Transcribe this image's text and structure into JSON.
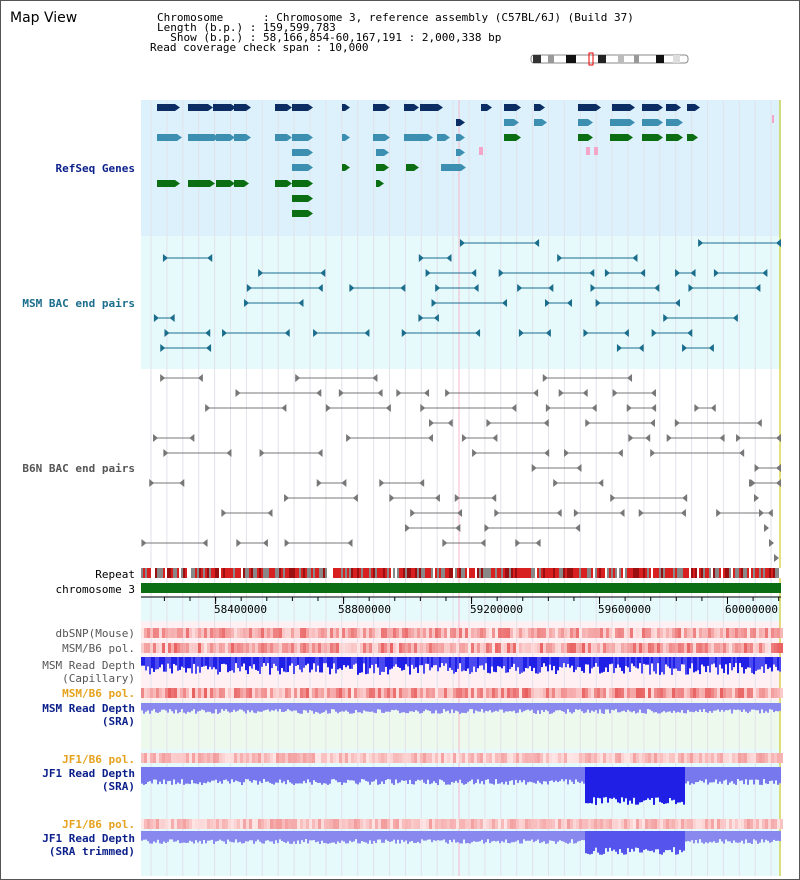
{
  "header": {
    "title": "Map View",
    "lines": [
      "Chromosome      : Chromosome 3, reference assembly (C57BL/6J) (Build 37)",
      "Length (b.p.) : 159,599,783",
      "  Show (b.p.) : 58,166,854-60,167,191 : 2,000,338 bp",
      "Read coverage check span : 10,000"
    ]
  },
  "tracks": {
    "refseq": {
      "label": "RefSeq Genes",
      "color": "#0b1f8a",
      "bg": "#dcf1fb"
    },
    "msm_bac": {
      "label": "MSM BAC end pairs",
      "color": "#1b6d8c",
      "bg": "#e6f9fb"
    },
    "b6n_bac": {
      "label": "B6N BAC end pairs",
      "color": "#555555"
    },
    "repeat": {
      "label": "Repeat"
    },
    "chromosome": {
      "label": "chromosome 3",
      "color": "#0b6e12"
    },
    "dbsnp": {
      "label": "dbSNP(Mouse)"
    },
    "msm_pol_cap": {
      "label": "MSM/B6 pol."
    },
    "msm_depth_cap": {
      "label_line1": "MSM Read Depth",
      "label_line2": "(Capillary)"
    },
    "msm_pol_sra": {
      "label": "MSM/B6 pol.",
      "color": "#e6a21d"
    },
    "msm_depth_sra": {
      "label_line1": "MSM Read Depth",
      "label_line2": "(SRA)"
    },
    "jf1_pol": {
      "label": "JF1/B6 pol.",
      "color": "#e6a21d"
    },
    "jf1_depth": {
      "label_line1": "JF1 Read Depth",
      "label_line2": "(SRA)"
    },
    "jf1_pol2": {
      "label": "JF1/B6 pol.",
      "color": "#e6a21d"
    },
    "jf1_depth_trim": {
      "label_line1": "JF1 Read Depth",
      "label_line2": "(SRA trimmed)"
    }
  },
  "axis": {
    "range_bp": [
      58166854,
      60167191
    ],
    "ticks": [
      "58400000",
      "58800000",
      "59200000",
      "59600000",
      "60000000"
    ],
    "tick_values": [
      58400000,
      58800000,
      59200000,
      59600000,
      60000000
    ]
  },
  "colors": {
    "label_blue": "#0b1f8a",
    "label_teal": "#1b6d8c",
    "label_gray": "#555555",
    "label_orange": "#e6a21d",
    "depth_dark": "#1f1fe6",
    "depth_light": "#8888ee"
  }
}
